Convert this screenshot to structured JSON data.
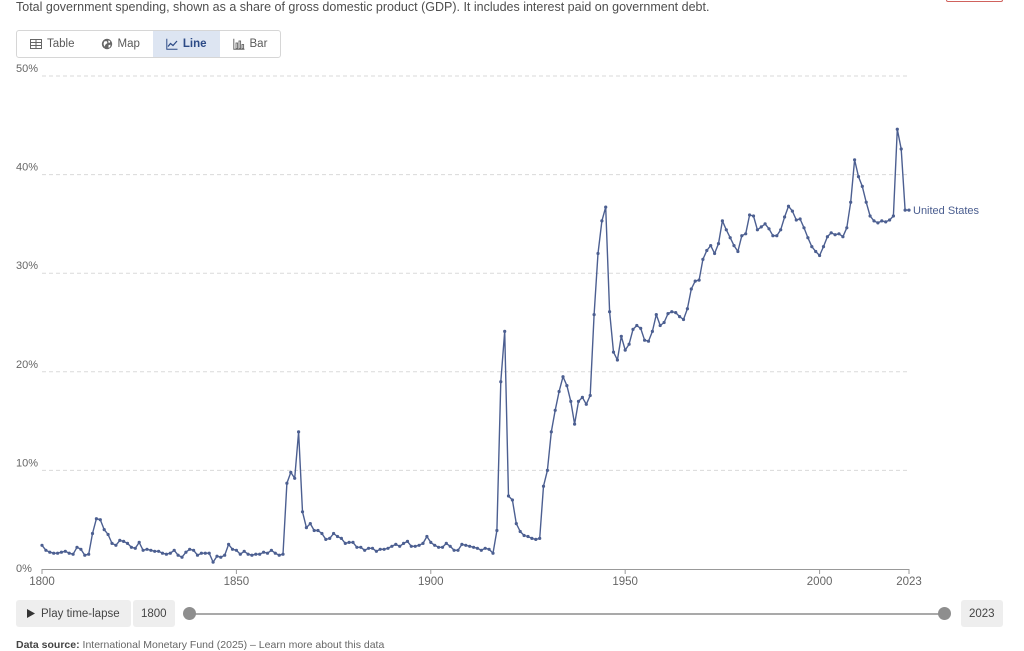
{
  "subtitle": "Total government spending, shown as a share of gross domestic product (GDP). It includes interest paid on government debt.",
  "tabs": [
    {
      "label": "Table",
      "icon": "table-icon"
    },
    {
      "label": "Map",
      "icon": "globe-icon"
    },
    {
      "label": "Line",
      "icon": "line-chart-icon",
      "active": true
    },
    {
      "label": "Bar",
      "icon": "bar-chart-icon"
    }
  ],
  "timeline": {
    "play_label": "Play time-lapse",
    "start_year": "1800",
    "end_year": "2023"
  },
  "source": {
    "label": "Data source:",
    "text": "International Monetary Fund (2025) – Learn more about this data"
  },
  "colors": {
    "series": "#4c5f91",
    "grid": "#dadada",
    "axis": "#999999"
  },
  "chart_data": {
    "type": "line",
    "xlim": [
      1800,
      2023
    ],
    "ylim": [
      0,
      50
    ],
    "y_ticks": [
      0,
      10,
      20,
      30,
      40,
      50
    ],
    "y_tick_labels": [
      "0%",
      "10%",
      "20%",
      "30%",
      "40%",
      "50%"
    ],
    "x_ticks": [
      1800,
      1850,
      1900,
      1950,
      2000,
      2023
    ],
    "x_tick_labels": [
      "1800",
      "1850",
      "1900",
      "1950",
      "2000",
      "2023"
    ],
    "grid": "horizontal dashed",
    "series": [
      {
        "name": "United States",
        "points": [
          [
            1800,
            2.4
          ],
          [
            1801,
            1.9
          ],
          [
            1802,
            1.7
          ],
          [
            1803,
            1.6
          ],
          [
            1804,
            1.6
          ],
          [
            1805,
            1.7
          ],
          [
            1806,
            1.8
          ],
          [
            1807,
            1.6
          ],
          [
            1808,
            1.5
          ],
          [
            1809,
            2.2
          ],
          [
            1810,
            2.0
          ],
          [
            1811,
            1.4
          ],
          [
            1812,
            1.5
          ],
          [
            1813,
            3.6
          ],
          [
            1814,
            5.1
          ],
          [
            1815,
            5.0
          ],
          [
            1816,
            4.0
          ],
          [
            1817,
            3.5
          ],
          [
            1818,
            2.6
          ],
          [
            1819,
            2.4
          ],
          [
            1820,
            2.9
          ],
          [
            1821,
            2.8
          ],
          [
            1822,
            2.6
          ],
          [
            1823,
            2.2
          ],
          [
            1824,
            2.1
          ],
          [
            1825,
            2.7
          ],
          [
            1826,
            1.9
          ],
          [
            1827,
            2.0
          ],
          [
            1828,
            1.9
          ],
          [
            1829,
            1.8
          ],
          [
            1830,
            1.8
          ],
          [
            1831,
            1.6
          ],
          [
            1832,
            1.5
          ],
          [
            1833,
            1.6
          ],
          [
            1834,
            1.9
          ],
          [
            1835,
            1.4
          ],
          [
            1836,
            1.2
          ],
          [
            1837,
            1.7
          ],
          [
            1838,
            2.0
          ],
          [
            1839,
            1.9
          ],
          [
            1840,
            1.4
          ],
          [
            1841,
            1.6
          ],
          [
            1842,
            1.6
          ],
          [
            1843,
            1.6
          ],
          [
            1844,
            0.7
          ],
          [
            1845,
            1.3
          ],
          [
            1846,
            1.2
          ],
          [
            1847,
            1.4
          ],
          [
            1848,
            2.5
          ],
          [
            1849,
            2.0
          ],
          [
            1850,
            1.9
          ],
          [
            1851,
            1.5
          ],
          [
            1852,
            1.8
          ],
          [
            1853,
            1.5
          ],
          [
            1854,
            1.4
          ],
          [
            1855,
            1.5
          ],
          [
            1856,
            1.5
          ],
          [
            1857,
            1.7
          ],
          [
            1858,
            1.6
          ],
          [
            1859,
            1.9
          ],
          [
            1860,
            1.6
          ],
          [
            1861,
            1.4
          ],
          [
            1862,
            1.5
          ],
          [
            1863,
            8.7
          ],
          [
            1864,
            9.8
          ],
          [
            1865,
            9.2
          ],
          [
            1866,
            13.9
          ],
          [
            1867,
            5.8
          ],
          [
            1868,
            4.2
          ],
          [
            1869,
            4.6
          ],
          [
            1870,
            3.9
          ],
          [
            1871,
            3.9
          ],
          [
            1872,
            3.6
          ],
          [
            1873,
            3.0
          ],
          [
            1874,
            3.1
          ],
          [
            1875,
            3.6
          ],
          [
            1876,
            3.3
          ],
          [
            1877,
            3.1
          ],
          [
            1878,
            2.6
          ],
          [
            1879,
            2.7
          ],
          [
            1880,
            2.7
          ],
          [
            1881,
            2.2
          ],
          [
            1882,
            2.2
          ],
          [
            1883,
            1.9
          ],
          [
            1884,
            2.1
          ],
          [
            1885,
            2.1
          ],
          [
            1886,
            1.8
          ],
          [
            1887,
            2.0
          ],
          [
            1888,
            2.0
          ],
          [
            1889,
            2.1
          ],
          [
            1890,
            2.3
          ],
          [
            1891,
            2.5
          ],
          [
            1892,
            2.3
          ],
          [
            1893,
            2.6
          ],
          [
            1894,
            2.8
          ],
          [
            1895,
            2.3
          ],
          [
            1896,
            2.3
          ],
          [
            1897,
            2.4
          ],
          [
            1898,
            2.6
          ],
          [
            1899,
            3.3
          ],
          [
            1900,
            2.7
          ],
          [
            1901,
            2.4
          ],
          [
            1902,
            2.2
          ],
          [
            1903,
            2.2
          ],
          [
            1904,
            2.6
          ],
          [
            1905,
            2.3
          ],
          [
            1906,
            1.9
          ],
          [
            1907,
            1.9
          ],
          [
            1908,
            2.5
          ],
          [
            1909,
            2.4
          ],
          [
            1910,
            2.3
          ],
          [
            1911,
            2.2
          ],
          [
            1912,
            2.1
          ],
          [
            1913,
            1.9
          ],
          [
            1914,
            2.1
          ],
          [
            1915,
            2.0
          ],
          [
            1916,
            1.6
          ],
          [
            1917,
            3.9
          ],
          [
            1918,
            19.0
          ],
          [
            1919,
            24.1
          ],
          [
            1920,
            7.4
          ],
          [
            1921,
            7.0
          ],
          [
            1922,
            4.6
          ],
          [
            1923,
            3.8
          ],
          [
            1924,
            3.4
          ],
          [
            1925,
            3.3
          ],
          [
            1926,
            3.1
          ],
          [
            1927,
            3.0
          ],
          [
            1928,
            3.1
          ],
          [
            1929,
            8.4
          ],
          [
            1930,
            10.0
          ],
          [
            1931,
            13.9
          ],
          [
            1932,
            16.1
          ],
          [
            1933,
            18.0
          ],
          [
            1934,
            19.5
          ],
          [
            1935,
            18.6
          ],
          [
            1936,
            17.0
          ],
          [
            1937,
            14.7
          ],
          [
            1938,
            17.0
          ],
          [
            1939,
            17.4
          ],
          [
            1940,
            16.7
          ],
          [
            1941,
            17.6
          ],
          [
            1942,
            25.8
          ],
          [
            1943,
            32.0
          ],
          [
            1944,
            35.3
          ],
          [
            1945,
            36.7
          ],
          [
            1946,
            26.1
          ],
          [
            1947,
            22.0
          ],
          [
            1948,
            21.2
          ],
          [
            1949,
            23.6
          ],
          [
            1950,
            22.2
          ],
          [
            1951,
            22.8
          ],
          [
            1952,
            24.3
          ],
          [
            1953,
            24.7
          ],
          [
            1954,
            24.4
          ],
          [
            1955,
            23.2
          ],
          [
            1956,
            23.1
          ],
          [
            1957,
            24.1
          ],
          [
            1958,
            25.8
          ],
          [
            1959,
            24.7
          ],
          [
            1960,
            25.0
          ],
          [
            1961,
            25.9
          ],
          [
            1962,
            26.1
          ],
          [
            1963,
            26.0
          ],
          [
            1964,
            25.6
          ],
          [
            1965,
            25.3
          ],
          [
            1966,
            26.4
          ],
          [
            1967,
            28.4
          ],
          [
            1968,
            29.2
          ],
          [
            1969,
            29.3
          ],
          [
            1970,
            31.4
          ],
          [
            1971,
            32.3
          ],
          [
            1972,
            32.8
          ],
          [
            1973,
            32.0
          ],
          [
            1974,
            33.0
          ],
          [
            1975,
            35.3
          ],
          [
            1976,
            34.4
          ],
          [
            1977,
            33.6
          ],
          [
            1978,
            32.8
          ],
          [
            1979,
            32.2
          ],
          [
            1980,
            33.8
          ],
          [
            1981,
            34.0
          ],
          [
            1982,
            35.9
          ],
          [
            1983,
            35.8
          ],
          [
            1984,
            34.4
          ],
          [
            1985,
            34.7
          ],
          [
            1986,
            35.0
          ],
          [
            1987,
            34.5
          ],
          [
            1988,
            33.8
          ],
          [
            1989,
            33.8
          ],
          [
            1990,
            34.4
          ],
          [
            1991,
            35.7
          ],
          [
            1992,
            36.8
          ],
          [
            1993,
            36.3
          ],
          [
            1994,
            35.4
          ],
          [
            1995,
            35.5
          ],
          [
            1996,
            34.6
          ],
          [
            1997,
            33.6
          ],
          [
            1998,
            32.7
          ],
          [
            1999,
            32.2
          ],
          [
            2000,
            31.8
          ],
          [
            2001,
            32.7
          ],
          [
            2002,
            33.7
          ],
          [
            2003,
            34.1
          ],
          [
            2004,
            33.9
          ],
          [
            2005,
            34.0
          ],
          [
            2006,
            33.7
          ],
          [
            2007,
            34.6
          ],
          [
            2008,
            37.2
          ],
          [
            2009,
            41.5
          ],
          [
            2010,
            39.8
          ],
          [
            2011,
            38.8
          ],
          [
            2012,
            37.2
          ],
          [
            2013,
            35.8
          ],
          [
            2014,
            35.3
          ],
          [
            2015,
            35.1
          ],
          [
            2016,
            35.3
          ],
          [
            2017,
            35.2
          ],
          [
            2018,
            35.4
          ],
          [
            2019,
            35.8
          ],
          [
            2020,
            44.6
          ],
          [
            2021,
            42.6
          ],
          [
            2022,
            36.4
          ],
          [
            2023,
            36.4
          ]
        ]
      }
    ]
  }
}
